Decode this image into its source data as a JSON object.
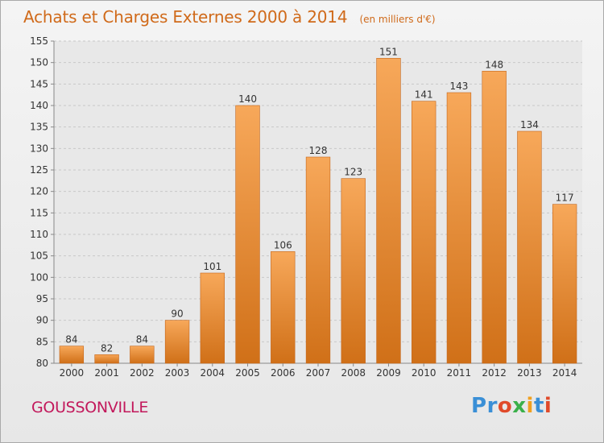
{
  "header": {
    "title": "Achats et Charges Externes 2000 à 2014",
    "subtitle": "(en milliers d'€)"
  },
  "footer": {
    "commune": "GOUSSONVILLE",
    "logo_text": "Proxiti"
  },
  "colors": {
    "title": "#d06a1a",
    "commune": "#c2185b",
    "bar_light": "#f7a85a",
    "bar_dark": "#d07018",
    "logo": [
      "#3a8fd6",
      "#3a8fd6",
      "#e04a2a",
      "#3ab04a",
      "#f0a020",
      "#3a8fd6",
      "#e04a2a"
    ]
  },
  "chart_data": {
    "type": "bar",
    "categories": [
      "2000",
      "2001",
      "2002",
      "2003",
      "2004",
      "2005",
      "2006",
      "2007",
      "2008",
      "2009",
      "2010",
      "2011",
      "2012",
      "2013",
      "2014"
    ],
    "values": [
      84,
      82,
      84,
      90,
      101,
      140,
      106,
      128,
      123,
      151,
      141,
      143,
      148,
      134,
      117
    ],
    "title": "Achats et Charges Externes 2000 à 2014",
    "xlabel": "",
    "ylabel": "",
    "ylim": [
      80,
      155
    ],
    "yticks": [
      80,
      85,
      90,
      95,
      100,
      105,
      110,
      115,
      120,
      125,
      130,
      135,
      140,
      145,
      150,
      155
    ],
    "grid": true,
    "data_labels": true
  }
}
